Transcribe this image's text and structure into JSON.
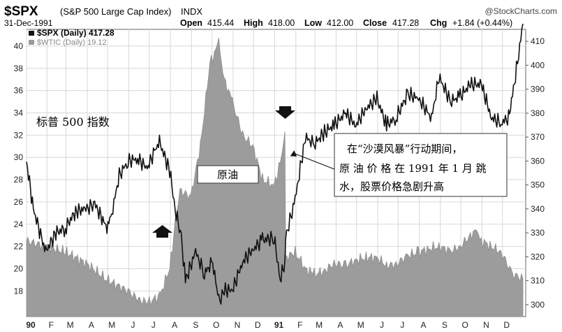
{
  "header": {
    "symbol": "$SPX",
    "index_name": "(S&P 500 Large Cap Index)",
    "index_tag": "INDX",
    "watermark": "@StockCharts.com",
    "date": "31-Dec-1991",
    "open_label": "Open",
    "open_value": "415.44",
    "high_label": "High",
    "high_value": "418.00",
    "low_label": "Low",
    "low_value": "412.00",
    "close_label": "Close",
    "close_value": "417.28",
    "chg_label": "Chg",
    "chg_value": "+1.84 (+0.44%)"
  },
  "legend": [
    {
      "label": "$SPX (Daily) 417.28",
      "color": "#111111"
    },
    {
      "label": "$WTIC (Daily) 19.12",
      "color": "#9a9a9a"
    }
  ],
  "annotations": {
    "spx_label": "标普 500 指数",
    "oil_label": "原油",
    "callout_lines": [
      "在“沙漠风暴”行动期间，",
      "原 油 价 格 在 1991 年 1 月 跳",
      "水，股票价格急剧升高"
    ]
  },
  "colors": {
    "spx_line": "#111111",
    "oil_fill": "#9c9c9c",
    "grid": "#d8d8d8",
    "plot_bg": "#ffffff",
    "marker": "#111111"
  },
  "chart_data": {
    "type": "line",
    "x_tick_labels": [
      "90",
      "F",
      "M",
      "A",
      "M",
      "J",
      "J",
      "A",
      "S",
      "O",
      "N",
      "D",
      "91",
      "F",
      "M",
      "A",
      "M",
      "J",
      "J",
      "A",
      "S",
      "O",
      "N",
      "D"
    ],
    "left_axis": {
      "ticks": [
        18,
        20,
        22,
        24,
        26,
        28,
        30,
        32,
        34,
        36,
        38,
        40
      ],
      "ylim": [
        15.7,
        41.5
      ]
    },
    "right_axis": {
      "ticks": [
        300,
        310,
        320,
        330,
        340,
        350,
        360,
        370,
        380,
        390,
        400,
        410
      ],
      "ylim": [
        295,
        415
      ]
    },
    "series": [
      {
        "name": "$SPX (Daily)",
        "axis": "right",
        "style": "line",
        "x": [
          "1990-01-02",
          "1990-01-12",
          "1990-01-30",
          "1990-02-14",
          "1990-02-28",
          "1990-03-15",
          "1990-03-30",
          "1990-04-12",
          "1990-04-30",
          "1990-05-07",
          "1990-05-18",
          "1990-05-31",
          "1990-06-14",
          "1990-06-28",
          "1990-07-10",
          "1990-07-16",
          "1990-07-31",
          "1990-08-08",
          "1990-08-17",
          "1990-08-23",
          "1990-09-07",
          "1990-09-20",
          "1990-10-02",
          "1990-10-11",
          "1990-10-19",
          "1990-10-31",
          "1990-11-15",
          "1990-11-30",
          "1990-12-14",
          "1990-12-31",
          "1991-01-09",
          "1991-01-16",
          "1991-01-17",
          "1991-01-31",
          "1991-02-15",
          "1991-02-28",
          "1991-03-15",
          "1991-03-29",
          "1991-04-15",
          "1991-04-30",
          "1991-05-15",
          "1991-05-31",
          "1991-06-14",
          "1991-06-28",
          "1991-07-15",
          "1991-07-31",
          "1991-08-19",
          "1991-08-30",
          "1991-09-16",
          "1991-09-30",
          "1991-10-15",
          "1991-10-31",
          "1991-11-15",
          "1991-11-29",
          "1991-12-10",
          "1991-12-20",
          "1991-12-31"
        ],
        "values": [
          359.7,
          340,
          322,
          330,
          332,
          339,
          340,
          342,
          332,
          338,
          354,
          360,
          361,
          357,
          365,
          368,
          356,
          340,
          328,
          310,
          322,
          313,
          318,
          301,
          306,
          306,
          318,
          323,
          327,
          328,
          311,
          317,
          328,
          344,
          370,
          367,
          372,
          375,
          380,
          375,
          382,
          386,
          375,
          378,
          388,
          386,
          378,
          395,
          385,
          387,
          392,
          392,
          378,
          376,
          378,
          395,
          417.3
        ]
      },
      {
        "name": "$WTIC (Daily)",
        "axis": "left",
        "style": "area",
        "x": [
          "1990-01-02",
          "1990-01-31",
          "1990-02-28",
          "1990-03-30",
          "1990-04-30",
          "1990-05-31",
          "1990-06-15",
          "1990-06-29",
          "1990-07-16",
          "1990-07-31",
          "1990-08-08",
          "1990-08-15",
          "1990-08-31",
          "1990-09-14",
          "1990-09-28",
          "1990-10-11",
          "1990-10-19",
          "1990-10-31",
          "1990-11-15",
          "1990-11-30",
          "1990-12-14",
          "1990-12-31",
          "1991-01-07",
          "1991-01-16",
          "1991-01-17",
          "1991-01-31",
          "1991-02-15",
          "1991-02-28",
          "1991-03-15",
          "1991-03-29",
          "1991-04-15",
          "1991-04-30",
          "1991-05-15",
          "1991-05-31",
          "1991-06-14",
          "1991-06-28",
          "1991-07-15",
          "1991-07-31",
          "1991-08-15",
          "1991-08-30",
          "1991-09-16",
          "1991-09-30",
          "1991-10-15",
          "1991-10-25",
          "1991-10-31",
          "1991-11-15",
          "1991-11-29",
          "1991-12-16",
          "1991-12-31"
        ],
        "values": [
          22.5,
          22.0,
          21.5,
          20.5,
          19.0,
          18.0,
          17.2,
          17.0,
          17.5,
          20.0,
          24.0,
          27.0,
          26.5,
          31.0,
          38.5,
          40.2,
          37.0,
          35.0,
          32.0,
          31.0,
          28.0,
          27.5,
          29.0,
          32.0,
          21.0,
          21.5,
          20.0,
          19.5,
          19.8,
          20.5,
          20.3,
          20.8,
          21.0,
          21.0,
          20.3,
          20.4,
          21.2,
          21.5,
          21.8,
          22.0,
          21.6,
          22.0,
          23.0,
          23.5,
          22.5,
          22.0,
          21.5,
          19.5,
          19.12
        ]
      }
    ]
  }
}
